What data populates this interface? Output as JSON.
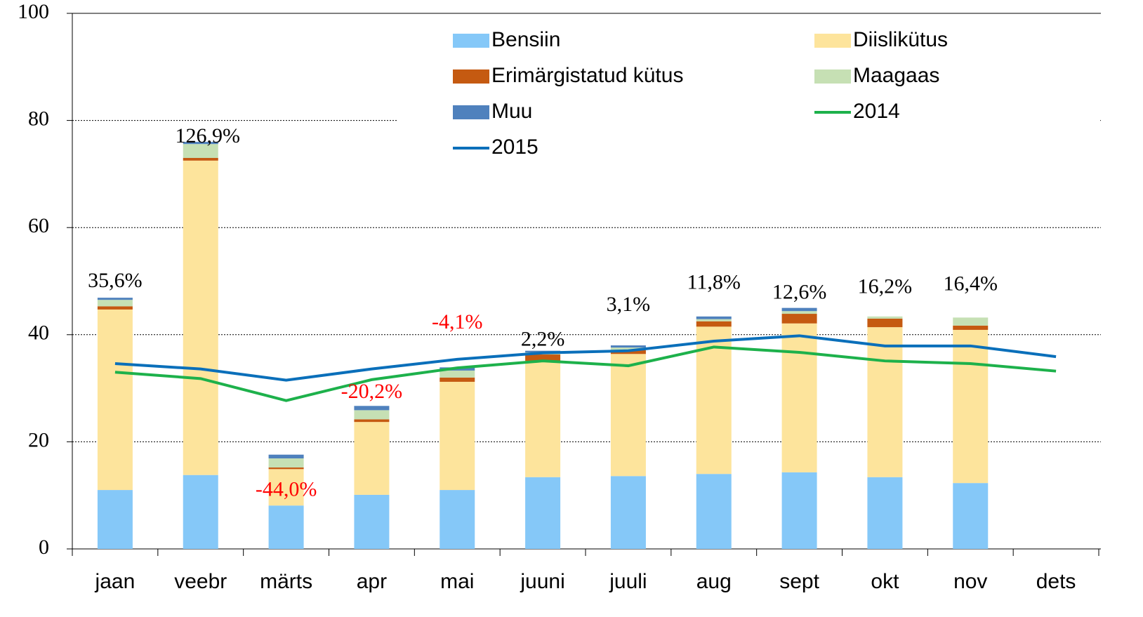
{
  "chart_data": {
    "type": "bar",
    "stacked": true,
    "categories": [
      "jaan",
      "veebr",
      "märts",
      "apr",
      "mai",
      "juuni",
      "juuli",
      "aug",
      "sept",
      "okt",
      "nov",
      "dets"
    ],
    "series": [
      {
        "name": "Bensiin",
        "color": "#85c8f8",
        "values": [
          11.0,
          13.8,
          8.1,
          10.1,
          11.0,
          13.4,
          13.6,
          14.0,
          14.3,
          13.4,
          12.3,
          null
        ]
      },
      {
        "name": "Diislikütus",
        "color": "#fde49c",
        "values": [
          33.7,
          58.7,
          6.8,
          13.6,
          20.2,
          21.7,
          22.8,
          27.5,
          27.8,
          28.0,
          28.6,
          null
        ]
      },
      {
        "name": "Erimärgistatud kütus",
        "color": "#c55a11",
        "values": [
          0.6,
          0.5,
          0.3,
          0.5,
          0.8,
          1.2,
          0.7,
          1.0,
          1.8,
          1.6,
          0.8,
          null
        ]
      },
      {
        "name": "Maagaas",
        "color": "#c6e0b4",
        "values": [
          1.2,
          2.6,
          1.7,
          1.7,
          1.3,
          0.4,
          0.5,
          0.4,
          0.5,
          0.4,
          1.5,
          null
        ]
      },
      {
        "name": "Muu",
        "color": "#4f81bd",
        "values": [
          0.4,
          0.4,
          0.7,
          0.8,
          0.6,
          0.3,
          0.4,
          0.5,
          0.6,
          0,
          0,
          null
        ]
      },
      {
        "name": "2014",
        "type": "line",
        "color": "#1db14b",
        "values": [
          33.0,
          31.8,
          27.7,
          31.6,
          33.8,
          35.1,
          34.2,
          37.7,
          36.7,
          35.1,
          34.6,
          33.2
        ]
      },
      {
        "name": "2015",
        "type": "line",
        "color": "#0a6fba",
        "values": [
          34.6,
          33.6,
          31.5,
          33.6,
          35.4,
          36.6,
          37.0,
          38.8,
          39.8,
          37.9,
          37.9,
          35.9
        ]
      }
    ],
    "annotations": [
      "35,6%",
      "126,9%",
      "-44,0%",
      "-20,2%",
      "-4,1%",
      "2,2%",
      "3,1%",
      "11,8%",
      "12,6%",
      "16,2%",
      "16,4%",
      null
    ],
    "annotation_colors": [
      "#000000",
      "#000000",
      "#ff0000",
      "#ff0000",
      "#ff0000",
      "#000000",
      "#000000",
      "#000000",
      "#000000",
      "#000000",
      "#000000",
      null
    ],
    "ylim": [
      0,
      100
    ],
    "yticks": [
      0,
      20,
      40,
      60,
      80,
      100
    ],
    "grid": true
  }
}
